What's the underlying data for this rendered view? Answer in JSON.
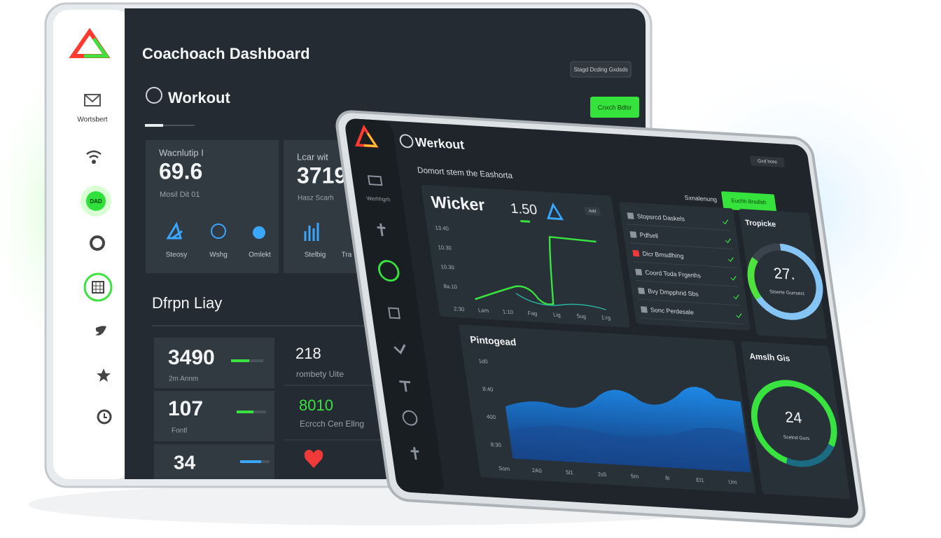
{
  "back": {
    "title": "Coachoach Dashboard",
    "top_button": "Stagd Dcding Gxdsds",
    "action_button": "Cnxch Bdlsr",
    "sidebar": {
      "label": "Wortsbert",
      "badge": "DAD"
    },
    "section": "Workout",
    "card1": {
      "label": "Wacnlutip I",
      "value": "69.6",
      "sub": "Mosil Dit 01",
      "icons": [
        "Steosy",
        "Wshg",
        "Omlekt"
      ]
    },
    "card2": {
      "label": "Lcar wit",
      "value": "3719",
      "sub": "Hasz Scarh",
      "icons": [
        "Stelbig",
        "Tra"
      ]
    },
    "section2": "Dfrpn Liay",
    "stats": [
      {
        "value": "3490",
        "label": "2m Annm"
      },
      {
        "value": "107",
        "label": "Fontl"
      },
      {
        "value": "34"
      }
    ],
    "stats_right": [
      {
        "value": "218",
        "label": "rombety Uite"
      },
      {
        "value": "8010",
        "label": "Ecrcch Cen Ellng"
      }
    ]
  },
  "front": {
    "header": "Werkout",
    "sidebar_label": "Werhhgrh",
    "subtitle": "Domort stem the Eashorta",
    "top_button": "Gxd hore",
    "status": "Sxnalenung",
    "action_button": "Euchh Brsdlsh",
    "metric": {
      "name": "Wicker",
      "value": "1.50",
      "badge": "Add",
      "y_labels": [
        "13.40",
        "10.30",
        "10.30",
        "8a.10"
      ],
      "x_labels": [
        "2:30",
        "Lam",
        "1:10",
        "Fag",
        "Lig",
        "5ug",
        "1:rg"
      ]
    },
    "list": [
      "Stopsrcd Daskels",
      "Pdfsell",
      "Dicr Bmsdlhing",
      "Coord Toda Frgenhs",
      "Bvy Dmpphrid Sbs",
      "Sonc Perdesale"
    ],
    "gauge1": {
      "title": "Tropicke",
      "value": "27.",
      "label": "Stoerte Gurrsect"
    },
    "area": {
      "title": "Pintogead",
      "y_labels": [
        "1d0",
        "8:40",
        "400",
        "8:30"
      ],
      "x_labels": [
        "Som",
        "2A0",
        "5l1",
        "2s5",
        "5rn",
        "fil",
        "El1",
        "Um"
      ]
    },
    "gauge2": {
      "title": "Amslh Gis",
      "value": "24",
      "label": "Scelnd Gurs"
    }
  }
}
